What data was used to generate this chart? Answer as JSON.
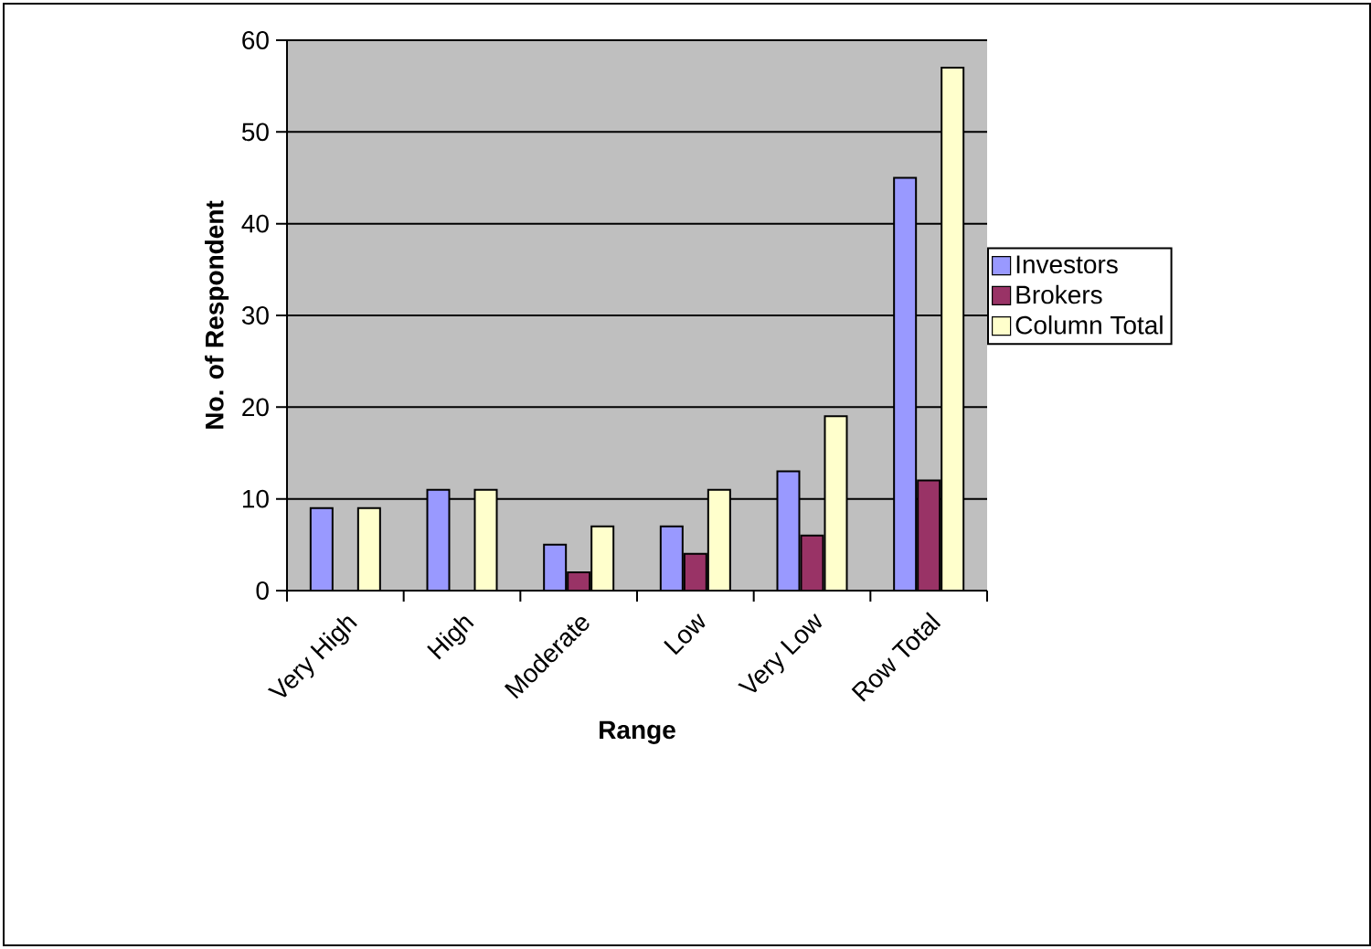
{
  "chart_data": {
    "type": "bar",
    "xlabel": "Range",
    "ylabel": "No. of Respondent",
    "categories": [
      "Very High",
      "High",
      "Moderate",
      "Low",
      "Very Low",
      "Row Total"
    ],
    "series": [
      {
        "name": "Investors",
        "color": "#9999ff",
        "values": [
          9,
          11,
          5,
          7,
          13,
          45
        ]
      },
      {
        "name": "Brokers",
        "color": "#993366",
        "values": [
          0,
          0,
          2,
          4,
          6,
          12
        ]
      },
      {
        "name": "Column Total",
        "color": "#ffffcc",
        "values": [
          9,
          11,
          7,
          11,
          19,
          57
        ]
      }
    ],
    "ylim": [
      0,
      60
    ],
    "yticks": [
      0,
      10,
      20,
      30,
      40,
      50,
      60
    ],
    "grid": "y",
    "legend": "right"
  }
}
